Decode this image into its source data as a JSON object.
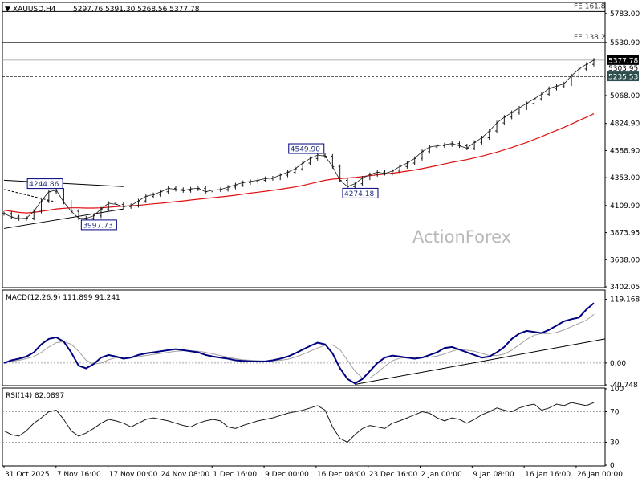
{
  "header": {
    "arrow": "▼",
    "symbol": "XAUUSD,H4",
    "ohlc": "5297.76 5391.30 5268.56 5377.78"
  },
  "watermark": "ActionForex",
  "colors": {
    "price": "#1a1a1a",
    "ma": "#e01010",
    "macd": "#000080",
    "signal": "#a0a0a0",
    "rsi": "#1a1a1a",
    "trend": "#000000",
    "current_price_tag": "#000000",
    "fib_tag": "#2f4f4f",
    "box_border": "#000080"
  },
  "chart_data": [
    {
      "type": "line",
      "panel": "price",
      "title": "XAUUSD,H4",
      "y_ticks": [
        "5783.00",
        "5530.90",
        "5068.00",
        "4824.90",
        "4588.90",
        "4353.00",
        "4109.90",
        "3873.95",
        "3638.00",
        "3402.05"
      ],
      "ylim": [
        3402.05,
        5880
      ],
      "x_ticks": [
        "31 Oct 2025",
        "7 Nov 16:00",
        "17 Nov 00:00",
        "24 Nov 08:00",
        "1 Dec 16:00",
        "9 Dec 00:00",
        "16 Dec 08:00",
        "23 Dec 16:00",
        "2 Jan 00:00",
        "9 Jan 08:00",
        "16 Jan 16:00",
        "26 Jan 00:00"
      ],
      "series": [
        {
          "values": [
            4040,
            4010,
            3995,
            4000,
            4060,
            4150,
            4230,
            4244,
            4140,
            4060,
            4000,
            3998,
            4020,
            4080,
            4130,
            4120,
            4100,
            4110,
            4150,
            4190,
            4205,
            4230,
            4260,
            4250,
            4240,
            4255,
            4260,
            4230,
            4245,
            4250,
            4270,
            4290,
            4310,
            4320,
            4330,
            4345,
            4350,
            4375,
            4400,
            4430,
            4480,
            4520,
            4549,
            4540,
            4450,
            4330,
            4275,
            4300,
            4350,
            4380,
            4400,
            4390,
            4410,
            4450,
            4480,
            4520,
            4580,
            4620,
            4630,
            4640,
            4650,
            4630,
            4610,
            4660,
            4700,
            4760,
            4830,
            4880,
            4920,
            4960,
            5000,
            5040,
            5080,
            5130,
            5150,
            5170,
            5240,
            5300,
            5340,
            5377
          ]
        },
        {
          "values": [
            4070,
            4060,
            4050,
            4045,
            4050,
            4060,
            4070,
            4080,
            4085,
            4090,
            4090,
            4088,
            4088,
            4090,
            4095,
            4100,
            4105,
            4108,
            4112,
            4118,
            4125,
            4130,
            4137,
            4144,
            4150,
            4158,
            4165,
            4172,
            4178,
            4185,
            4192,
            4200,
            4210,
            4218,
            4226,
            4234,
            4243,
            4252,
            4262,
            4272,
            4285,
            4300,
            4315,
            4330,
            4340,
            4345,
            4350,
            4355,
            4362,
            4370,
            4378,
            4385,
            4392,
            4400,
            4410,
            4420,
            4432,
            4445,
            4458,
            4472,
            4486,
            4498,
            4510,
            4525,
            4540,
            4558,
            4575,
            4595,
            4615,
            4638,
            4660,
            4685,
            4710,
            4738,
            4765,
            4792,
            4820,
            4850,
            4880,
            4910
          ]
        }
      ],
      "annotations": [
        {
          "text": "4244.86",
          "x": 7,
          "y": 4244.86
        },
        {
          "text": "3997.73",
          "x": 11,
          "y": 3997.73
        },
        {
          "text": "4549.90",
          "x": 42,
          "y": 4549.9
        },
        {
          "text": "4274.18",
          "x": 46,
          "y": 4274.18
        }
      ],
      "price_tags": {
        "current": "5377.78",
        "mid": "5303.95",
        "dashed": "5235.53"
      },
      "fib_levels": [
        {
          "label": "FE 161.8",
          "value": 5800
        },
        {
          "label": "FE 138.2",
          "value": 5530.9
        }
      ],
      "dashed_level": 5235.53,
      "grid": false
    },
    {
      "type": "line",
      "panel": "macd",
      "title": "MACD(12,26,9) 111.899 91.241",
      "y_ticks": [
        "119.168",
        "0.00",
        "-40.748"
      ],
      "ylim": [
        -40.748,
        135
      ],
      "series": [
        {
          "values": [
            0,
            5,
            8,
            12,
            20,
            35,
            45,
            48,
            40,
            20,
            -5,
            -10,
            -2,
            10,
            15,
            12,
            8,
            10,
            15,
            18,
            20,
            22,
            24,
            26,
            24,
            22,
            20,
            15,
            12,
            10,
            8,
            5,
            4,
            3,
            3,
            3,
            5,
            8,
            12,
            18,
            25,
            32,
            38,
            35,
            18,
            -10,
            -30,
            -38,
            -30,
            -15,
            0,
            10,
            14,
            12,
            10,
            8,
            10,
            15,
            20,
            28,
            30,
            25,
            20,
            15,
            10,
            12,
            20,
            30,
            45,
            55,
            60,
            58,
            56,
            62,
            70,
            78,
            82,
            85,
            100,
            112
          ]
        },
        {
          "values": [
            2,
            3,
            5,
            8,
            12,
            20,
            30,
            38,
            40,
            35,
            22,
            5,
            -2,
            0,
            6,
            10,
            10,
            10,
            12,
            14,
            16,
            18,
            20,
            22,
            23,
            23,
            22,
            20,
            17,
            14,
            11,
            8,
            6,
            5,
            4,
            3,
            4,
            5,
            7,
            11,
            16,
            22,
            28,
            33,
            34,
            25,
            5,
            -15,
            -28,
            -28,
            -18,
            -6,
            4,
            9,
            10,
            10,
            10,
            11,
            13,
            17,
            22,
            26,
            24,
            22,
            18,
            14,
            14,
            17,
            24,
            34,
            44,
            52,
            55,
            55,
            57,
            62,
            68,
            74,
            80,
            91
          ]
        }
      ],
      "trend_lines": 1
    },
    {
      "type": "line",
      "panel": "rsi",
      "title": "RSI(14) 82.0897",
      "y_ticks": [
        "100",
        "70",
        "30",
        "0"
      ],
      "ylim": [
        0,
        100
      ],
      "levels": [
        70,
        30
      ],
      "series": [
        {
          "values": [
            45,
            40,
            38,
            45,
            55,
            62,
            70,
            72,
            60,
            45,
            38,
            42,
            48,
            55,
            60,
            58,
            55,
            50,
            55,
            60,
            62,
            60,
            58,
            55,
            52,
            50,
            55,
            58,
            60,
            58,
            50,
            48,
            52,
            55,
            58,
            60,
            62,
            65,
            68,
            70,
            72,
            75,
            78,
            72,
            50,
            35,
            30,
            40,
            48,
            52,
            50,
            48,
            55,
            58,
            62,
            66,
            70,
            68,
            62,
            58,
            62,
            60,
            55,
            60,
            66,
            70,
            75,
            72,
            70,
            75,
            78,
            80,
            72,
            75,
            80,
            78,
            82,
            80,
            78,
            82
          ]
        }
      ]
    }
  ]
}
